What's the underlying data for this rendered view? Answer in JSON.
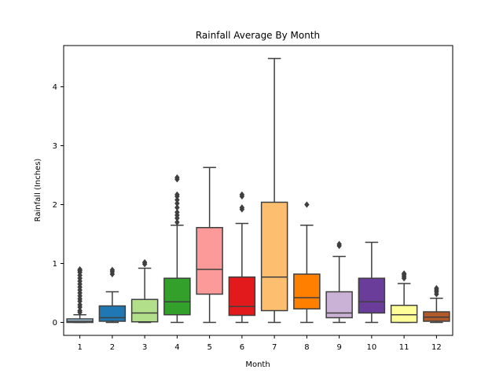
{
  "chart_data": {
    "type": "box",
    "title": "Rainfall Average By Month",
    "xlabel": "Month",
    "ylabel": "Rainfall (Inches)",
    "ylim": [
      -0.22,
      4.7
    ],
    "yticks": [
      0,
      1,
      2,
      3,
      4
    ],
    "grid": false,
    "categories": [
      "1",
      "2",
      "3",
      "4",
      "5",
      "6",
      "7",
      "8",
      "9",
      "10",
      "11",
      "12"
    ],
    "boxes": [
      {
        "month": "1",
        "color": "#A6CEE3",
        "whislo": 0.0,
        "q1": 0.0,
        "med": 0.02,
        "q3": 0.06,
        "whishi": 0.13,
        "fliers": [
          0.17,
          0.2,
          0.26,
          0.3,
          0.36,
          0.4,
          0.45,
          0.5,
          0.55,
          0.6,
          0.65,
          0.7,
          0.75,
          0.8,
          0.85,
          0.88,
          0.9
        ]
      },
      {
        "month": "2",
        "color": "#1F78B4",
        "whislo": 0.0,
        "q1": 0.02,
        "med": 0.08,
        "q3": 0.28,
        "whishi": 0.52,
        "fliers": [
          0.82,
          0.86,
          0.89
        ]
      },
      {
        "month": "3",
        "color": "#B2DF8A",
        "whislo": 0.0,
        "q1": 0.01,
        "med": 0.16,
        "q3": 0.39,
        "whishi": 0.92,
        "fliers": [
          0.99,
          1.02
        ]
      },
      {
        "month": "4",
        "color": "#33A02C",
        "whislo": 0.0,
        "q1": 0.13,
        "med": 0.35,
        "q3": 0.75,
        "whishi": 1.65,
        "fliers": [
          1.7,
          1.77,
          1.82,
          1.87,
          1.95,
          2.02,
          2.08,
          2.14,
          2.17,
          2.43,
          2.46
        ]
      },
      {
        "month": "5",
        "color": "#FB9A99",
        "whislo": 0.0,
        "q1": 0.48,
        "med": 0.9,
        "q3": 1.61,
        "whishi": 2.63,
        "fliers": []
      },
      {
        "month": "6",
        "color": "#E31A1C",
        "whislo": 0.0,
        "q1": 0.12,
        "med": 0.27,
        "q3": 0.77,
        "whishi": 1.68,
        "fliers": [
          1.92,
          1.95,
          2.14,
          2.17
        ]
      },
      {
        "month": "7",
        "color": "#FDBF6F",
        "whislo": 0.0,
        "q1": 0.2,
        "med": 0.77,
        "q3": 2.04,
        "whishi": 4.48,
        "fliers": []
      },
      {
        "month": "8",
        "color": "#FF7F00",
        "whislo": 0.0,
        "q1": 0.23,
        "med": 0.42,
        "q3": 0.82,
        "whishi": 1.65,
        "fliers": [
          2.0
        ]
      },
      {
        "month": "9",
        "color": "#CAB2D6",
        "whislo": 0.0,
        "q1": 0.08,
        "med": 0.16,
        "q3": 0.52,
        "whishi": 1.12,
        "fliers": [
          1.3,
          1.33
        ]
      },
      {
        "month": "10",
        "color": "#6A3D9A",
        "whislo": 0.0,
        "q1": 0.16,
        "med": 0.35,
        "q3": 0.75,
        "whishi": 1.36,
        "fliers": []
      },
      {
        "month": "11",
        "color": "#FFFF99",
        "whislo": 0.0,
        "q1": 0.0,
        "med": 0.13,
        "q3": 0.29,
        "whishi": 0.66,
        "fliers": [
          0.75,
          0.78,
          0.81,
          0.83
        ]
      },
      {
        "month": "12",
        "color": "#B15928",
        "whislo": 0.0,
        "q1": 0.02,
        "med": 0.09,
        "q3": 0.18,
        "whishi": 0.41,
        "fliers": [
          0.48,
          0.52,
          0.55,
          0.58
        ]
      }
    ]
  }
}
